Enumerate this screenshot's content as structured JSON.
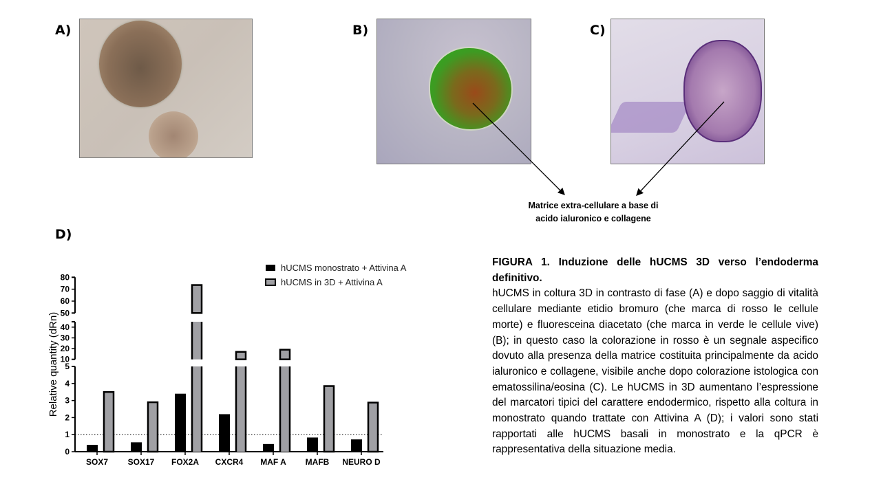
{
  "panels": {
    "a_label": "A)",
    "b_label": "B)",
    "c_label": "C)",
    "d_label": "D)",
    "matrix_note_line1": "Matrice extra-cellulare a base di",
    "matrix_note_line2": "acido ialuronico e collagene"
  },
  "caption": {
    "title": "FIGURA 1. Induzione delle hUCMS 3D verso l’endoderma definitivo.",
    "body": "hUCMS in coltura 3D in contrasto di fase (A) e dopo saggio di vitalità cellulare mediante etidio bromuro (che marca di rosso le cellule morte) e fluoresceina diacetato (che marca in verde le cellule vive) (B); in questo caso la colorazione in rosso è un segnale aspecifico dovuto alla presenza della matrice costituita principalmente da acido ialuronico e collagene, visibile anche dopo colorazione istologica con ematossilina/eosina (C). Le hUCMS in 3D aumentano l’espressione del marcatori tipici del carattere endodermico, rispetto alla coltura in monostrato quando trattate con Attivina A (D); i valori sono stati rapportati alle hUCMS basali in monostrato e la qPCR è rappresentativa della situazione media."
  },
  "chart_data": {
    "type": "bar",
    "title": "",
    "xlabel": "",
    "ylabel": "Relative quantity (dRn)",
    "categories": [
      "SOX7",
      "SOX17",
      "FOX2A",
      "CXCR4",
      "MAF A",
      "MAFB",
      "NEURO D"
    ],
    "series": [
      {
        "name": "hUCMS monostrato + Attivina A",
        "color": "#000000",
        "values": [
          0.4,
          0.55,
          3.4,
          2.2,
          0.45,
          0.83,
          0.72
        ]
      },
      {
        "name": "hUCMS in 3D + Attivina A",
        "color": "#a0a0a4",
        "values": [
          3.5,
          2.9,
          73.5,
          17,
          19,
          3.85,
          2.88
        ]
      }
    ],
    "y_axis_segments": [
      {
        "range": [
          0,
          5
        ],
        "ticks": [
          "0",
          "1",
          "2",
          "3",
          "4",
          "5"
        ]
      },
      {
        "range": [
          10,
          45
        ],
        "ticks": [
          "10",
          "20",
          "30",
          "40"
        ]
      },
      {
        "range": [
          50,
          80
        ],
        "ticks": [
          "50",
          "60",
          "70",
          "80"
        ]
      }
    ],
    "reference_line": 1,
    "legend_position": "top-right",
    "grid": false
  }
}
